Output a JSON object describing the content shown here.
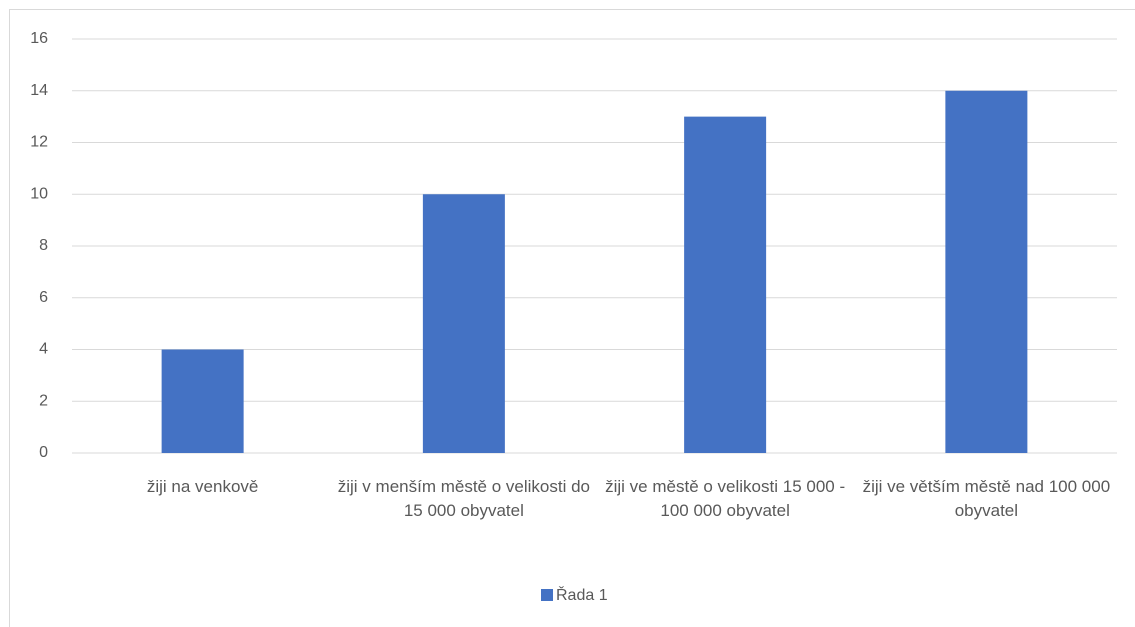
{
  "chart_data": {
    "type": "bar",
    "categories": [
      "žiji na venkově",
      "žiji v menším městě o velikosti do 15 000 obyvatel",
      "žiji ve městě o velikosti 15 000 - 100 000 obyvatel",
      "žiji ve větším městě nad 100 000 obyvatel"
    ],
    "series": [
      {
        "name": "Řada 1",
        "color": "#4472c4",
        "values": [
          4,
          10,
          13,
          14
        ]
      }
    ],
    "ylim": [
      0,
      16
    ],
    "yticks": [
      0,
      2,
      4,
      6,
      8,
      10,
      12,
      14,
      16
    ],
    "grid": true,
    "legend": "bottom"
  }
}
